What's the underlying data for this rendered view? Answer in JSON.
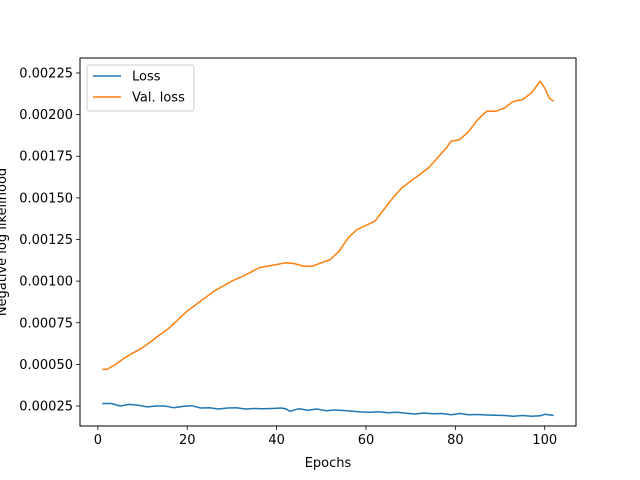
{
  "chart_data": {
    "type": "line",
    "xlabel": "Epochs",
    "ylabel": "Negative log likelihood",
    "xlim": [
      -4,
      107
    ],
    "ylim": [
      0.00013,
      0.00234
    ],
    "xticks": [
      0,
      20,
      40,
      60,
      80,
      100
    ],
    "yticks": [
      0.00025,
      0.0005,
      0.00075,
      0.001,
      0.00125,
      0.0015,
      0.00175,
      0.002,
      0.00225
    ],
    "ytick_labels": [
      "0.00025",
      "0.00050",
      "0.00075",
      "0.00100",
      "0.00125",
      "0.00150",
      "0.00175",
      "0.00200",
      "0.00225"
    ],
    "grid": false,
    "legend_position": "upper-left",
    "series": [
      {
        "name": "Loss",
        "color": "#1f77b4",
        "points": [
          [
            1,
            0.000265
          ],
          [
            3,
            0.000265
          ],
          [
            5,
            0.00025
          ],
          [
            7,
            0.00026
          ],
          [
            9,
            0.000255
          ],
          [
            11,
            0.000245
          ],
          [
            13,
            0.00025
          ],
          [
            15,
            0.00025
          ],
          [
            17,
            0.00024
          ],
          [
            19,
            0.000248
          ],
          [
            21,
            0.000252
          ],
          [
            23,
            0.000238
          ],
          [
            25,
            0.00024
          ],
          [
            27,
            0.000232
          ],
          [
            29,
            0.000238
          ],
          [
            31,
            0.00024
          ],
          [
            33,
            0.000232
          ],
          [
            35,
            0.000235
          ],
          [
            37,
            0.000233
          ],
          [
            39,
            0.000235
          ],
          [
            41,
            0.000238
          ],
          [
            42,
            0.000234
          ],
          [
            43,
            0.000218
          ],
          [
            45,
            0.000234
          ],
          [
            47,
            0.000224
          ],
          [
            49,
            0.000232
          ],
          [
            51,
            0.000222
          ],
          [
            53,
            0.000226
          ],
          [
            55,
            0.000223
          ],
          [
            57,
            0.000218
          ],
          [
            59,
            0.000214
          ],
          [
            61,
            0.000213
          ],
          [
            63,
            0.000215
          ],
          [
            65,
            0.000209
          ],
          [
            67,
            0.000213
          ],
          [
            69,
            0.000206
          ],
          [
            71,
            0.000202
          ],
          [
            73,
            0.000208
          ],
          [
            75,
            0.000203
          ],
          [
            77,
            0.000205
          ],
          [
            79,
            0.000198
          ],
          [
            81,
            0.000205
          ],
          [
            83,
            0.000198
          ],
          [
            85,
            0.000199
          ],
          [
            87,
            0.000196
          ],
          [
            89,
            0.000195
          ],
          [
            91,
            0.000193
          ],
          [
            93,
            0.000188
          ],
          [
            95,
            0.000193
          ],
          [
            97,
            0.000189
          ],
          [
            99,
            0.000191
          ],
          [
            100,
            0.0002
          ],
          [
            102,
            0.000193
          ]
        ]
      },
      {
        "name": "Val. loss",
        "color": "#ff7f0e",
        "points": [
          [
            1,
            0.00047
          ],
          [
            2,
            0.00047
          ],
          [
            4,
            0.0005
          ],
          [
            6,
            0.00054
          ],
          [
            8,
            0.00057
          ],
          [
            10,
            0.0006
          ],
          [
            12,
            0.00064
          ],
          [
            14,
            0.00068
          ],
          [
            16,
            0.00072
          ],
          [
            18,
            0.00077
          ],
          [
            20,
            0.00082
          ],
          [
            22,
            0.00086
          ],
          [
            24,
            0.0009
          ],
          [
            26,
            0.00094
          ],
          [
            28,
            0.00097
          ],
          [
            30,
            0.001
          ],
          [
            32,
            0.001025
          ],
          [
            34,
            0.00105
          ],
          [
            36,
            0.00108
          ],
          [
            38,
            0.00109
          ],
          [
            40,
            0.0011
          ],
          [
            42,
            0.00111
          ],
          [
            44,
            0.001105
          ],
          [
            46,
            0.00109
          ],
          [
            48,
            0.00109
          ],
          [
            50,
            0.00111
          ],
          [
            52,
            0.00113
          ],
          [
            54,
            0.00118
          ],
          [
            56,
            0.00126
          ],
          [
            58,
            0.00131
          ],
          [
            60,
            0.001335
          ],
          [
            62,
            0.00136
          ],
          [
            64,
            0.00143
          ],
          [
            66,
            0.0015
          ],
          [
            68,
            0.00156
          ],
          [
            70,
            0.0016
          ],
          [
            72,
            0.00164
          ],
          [
            74,
            0.00168
          ],
          [
            76,
            0.00174
          ],
          [
            78,
            0.0018
          ],
          [
            79,
            0.00184
          ],
          [
            81,
            0.00185
          ],
          [
            83,
            0.0019
          ],
          [
            85,
            0.00197
          ],
          [
            87,
            0.00202
          ],
          [
            89,
            0.00202
          ],
          [
            91,
            0.00204
          ],
          [
            93,
            0.00208
          ],
          [
            95,
            0.00209
          ],
          [
            97,
            0.00213
          ],
          [
            99,
            0.0022
          ],
          [
            100,
            0.00216
          ],
          [
            101,
            0.0021
          ],
          [
            102,
            0.00208
          ]
        ]
      }
    ]
  }
}
